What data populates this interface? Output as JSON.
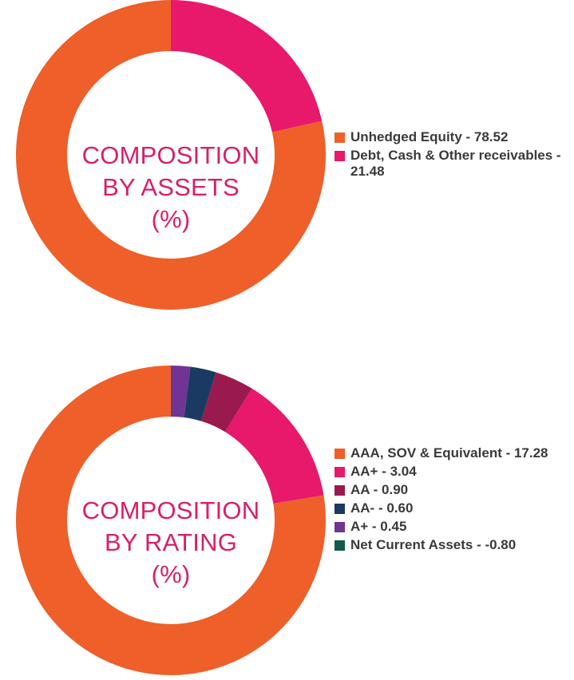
{
  "chart_data": [
    {
      "type": "pie",
      "title": "COMPOSITION BY ASSETS (%)",
      "title_lines": [
        "COMPOSITION",
        "BY ASSETS",
        "(%)"
      ],
      "donut": true,
      "slices": [
        {
          "label": "Unhedged Equity - 78.52",
          "name": "Unhedged Equity",
          "value": 78.52,
          "color": "#ee5f2a"
        },
        {
          "label": "Debt, Cash & Other receivables - 21.48",
          "name": "Debt, Cash & Other receivables",
          "value": 21.48,
          "color": "#e8186b"
        }
      ],
      "legend_position": "right"
    },
    {
      "type": "pie",
      "title": "COMPOSITION BY RATING (%)",
      "title_lines": [
        "COMPOSITION",
        "BY RATING",
        "(%)"
      ],
      "donut": true,
      "slices": [
        {
          "label": "AAA, SOV & Equivalent - 17.28",
          "name": "AAA, SOV & Equivalent",
          "value": 17.28,
          "color": "#ee5f2a"
        },
        {
          "label": "AA+ - 3.04",
          "name": "AA+",
          "value": 3.04,
          "color": "#e8186b"
        },
        {
          "label": "AA - 0.90",
          "name": "AA",
          "value": 0.9,
          "color": "#9a1a4e"
        },
        {
          "label": "AA- - 0.60",
          "name": "AA-",
          "value": 0.6,
          "color": "#1b3a63"
        },
        {
          "label": "A+ - 0.45",
          "name": "A+",
          "value": 0.45,
          "color": "#6f3494"
        },
        {
          "label": "Net Current Assets - -0.80",
          "name": "Net Current Assets",
          "value": -0.8,
          "color": "#0f5c4a"
        }
      ],
      "legend_position": "right"
    }
  ]
}
